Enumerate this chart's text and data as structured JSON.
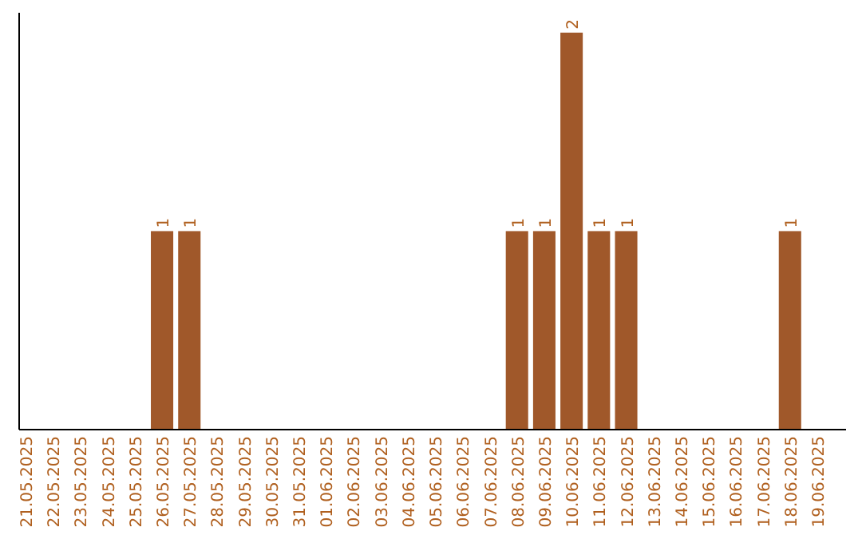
{
  "chart_data": {
    "type": "bar",
    "categories": [
      "21.05.2025",
      "22.05.2025",
      "23.05.2025",
      "24.05.2025",
      "25.05.2025",
      "26.05.2025",
      "27.05.2025",
      "28.05.2025",
      "29.05.2025",
      "30.05.2025",
      "31.05.2025",
      "01.06.2025",
      "02.06.2025",
      "03.06.2025",
      "04.06.2025",
      "05.06.2025",
      "06.06.2025",
      "07.06.2025",
      "08.06.2025",
      "09.06.2025",
      "10.06.2025",
      "11.06.2025",
      "12.06.2025",
      "13.06.2025",
      "14.06.2025",
      "15.06.2025",
      "16.06.2025",
      "17.06.2025",
      "18.06.2025",
      "19.06.2025"
    ],
    "values": [
      0,
      0,
      0,
      0,
      0,
      1,
      1,
      0,
      0,
      0,
      0,
      0,
      0,
      0,
      0,
      0,
      0,
      0,
      1,
      1,
      2,
      1,
      1,
      0,
      0,
      0,
      0,
      0,
      1,
      0
    ],
    "value_labels": [
      null,
      null,
      null,
      null,
      null,
      "1",
      "1",
      null,
      null,
      null,
      null,
      null,
      null,
      null,
      null,
      null,
      null,
      null,
      "1",
      "1",
      "2",
      "1",
      "1",
      null,
      null,
      null,
      null,
      null,
      "1",
      null
    ],
    "color": "#a0582a",
    "tick_labels": "x"
  }
}
